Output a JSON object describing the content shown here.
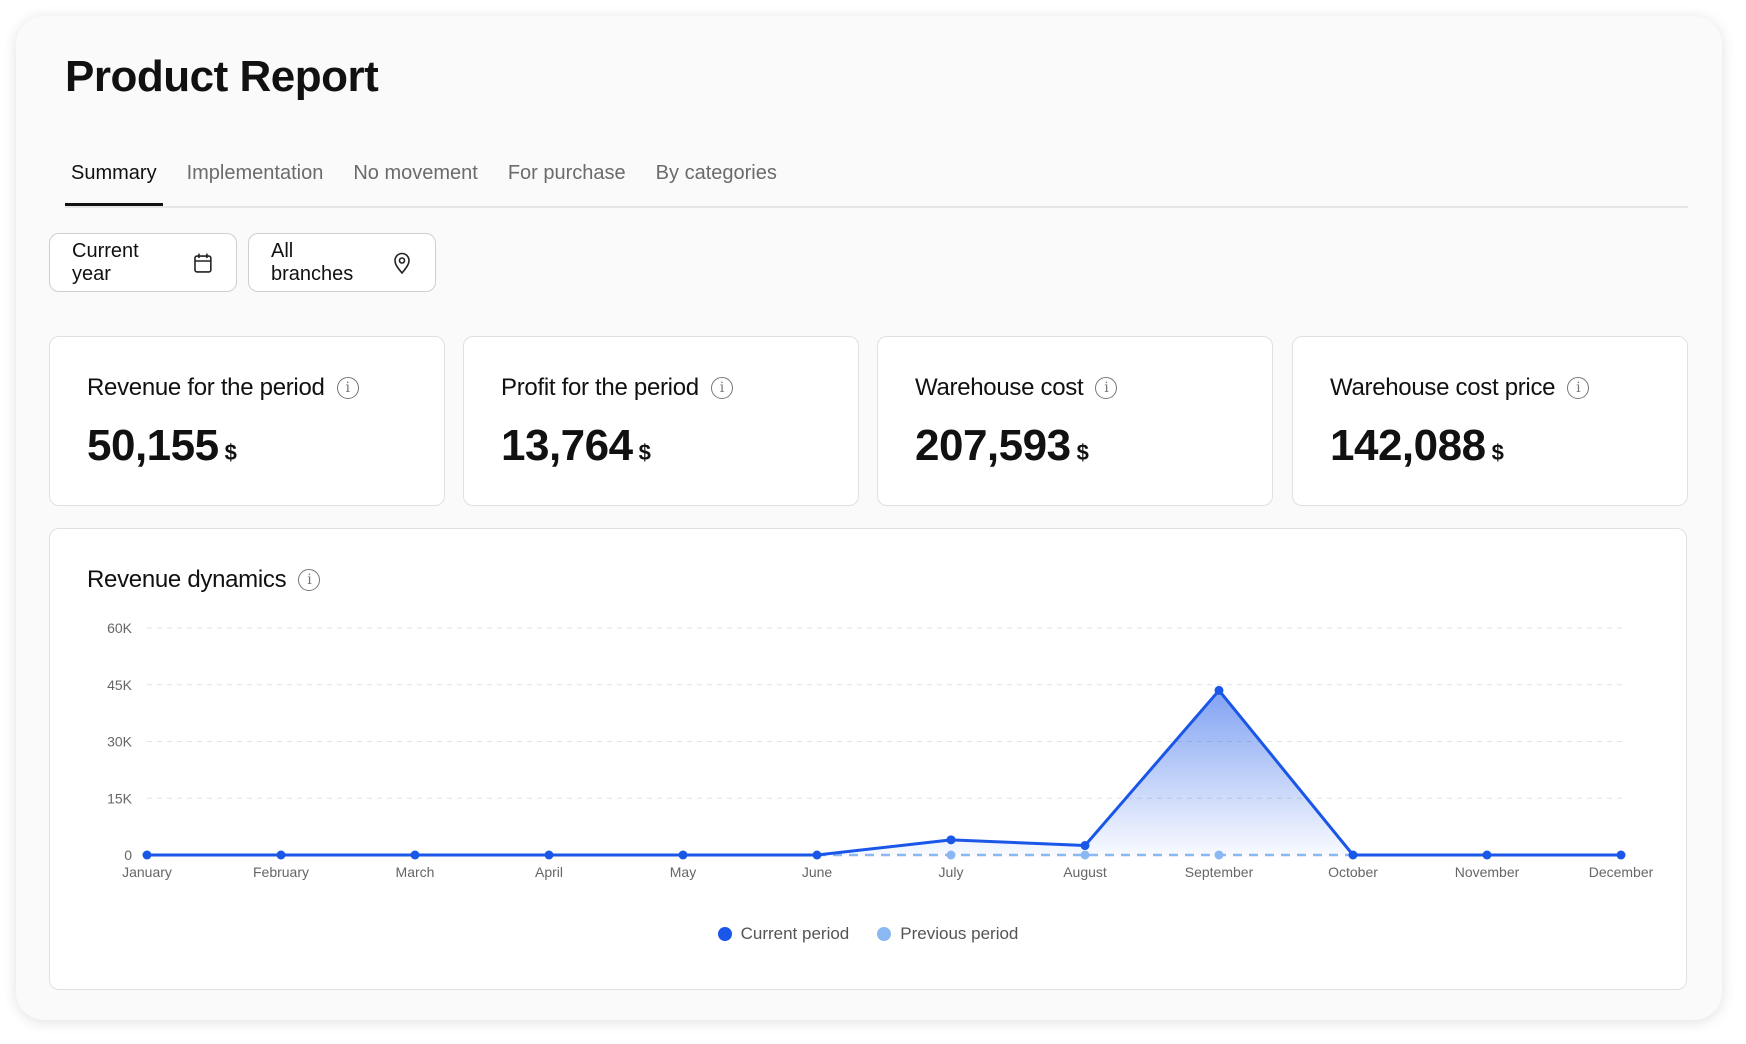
{
  "header": {
    "title": "Product Report"
  },
  "tabs": [
    {
      "label": "Summary",
      "active": true
    },
    {
      "label": "Implementation"
    },
    {
      "label": "No movement"
    },
    {
      "label": "For purchase"
    },
    {
      "label": "By categories"
    }
  ],
  "filters": {
    "period": {
      "label": "Current year",
      "icon": "calendar-icon"
    },
    "branch": {
      "label": "All branches",
      "icon": "map-pin-icon"
    }
  },
  "kpis": [
    {
      "label": "Revenue for the period",
      "value": "50,155",
      "unit": "$"
    },
    {
      "label": "Profit for the period",
      "value": "13,764",
      "unit": "$"
    },
    {
      "label": "Warehouse cost",
      "value": "207,593",
      "unit": "$"
    },
    {
      "label": "Warehouse cost price",
      "value": "142,088",
      "unit": "$"
    }
  ],
  "chart_data": {
    "type": "line",
    "title": "Revenue dynamics",
    "categories": [
      "January",
      "February",
      "March",
      "April",
      "May",
      "June",
      "July",
      "August",
      "September",
      "October",
      "November",
      "December"
    ],
    "ylim": [
      0,
      60000
    ],
    "yticks": [
      0,
      15000,
      30000,
      45000,
      60000
    ],
    "ytick_labels": [
      "0",
      "15K",
      "30K",
      "45K",
      "60K"
    ],
    "grid": true,
    "legend_position": "bottom",
    "series": [
      {
        "name": "Current period",
        "color": "#1a56e8",
        "style": "solid",
        "fill": true,
        "values": [
          0,
          0,
          0,
          0,
          0,
          0,
          4000,
          2500,
          43500,
          0,
          0,
          0
        ]
      },
      {
        "name": "Previous period",
        "color": "#8ab8f2",
        "style": "dashed",
        "values": [
          null,
          null,
          null,
          null,
          null,
          0,
          0,
          0,
          0,
          0,
          null,
          null
        ]
      }
    ]
  }
}
